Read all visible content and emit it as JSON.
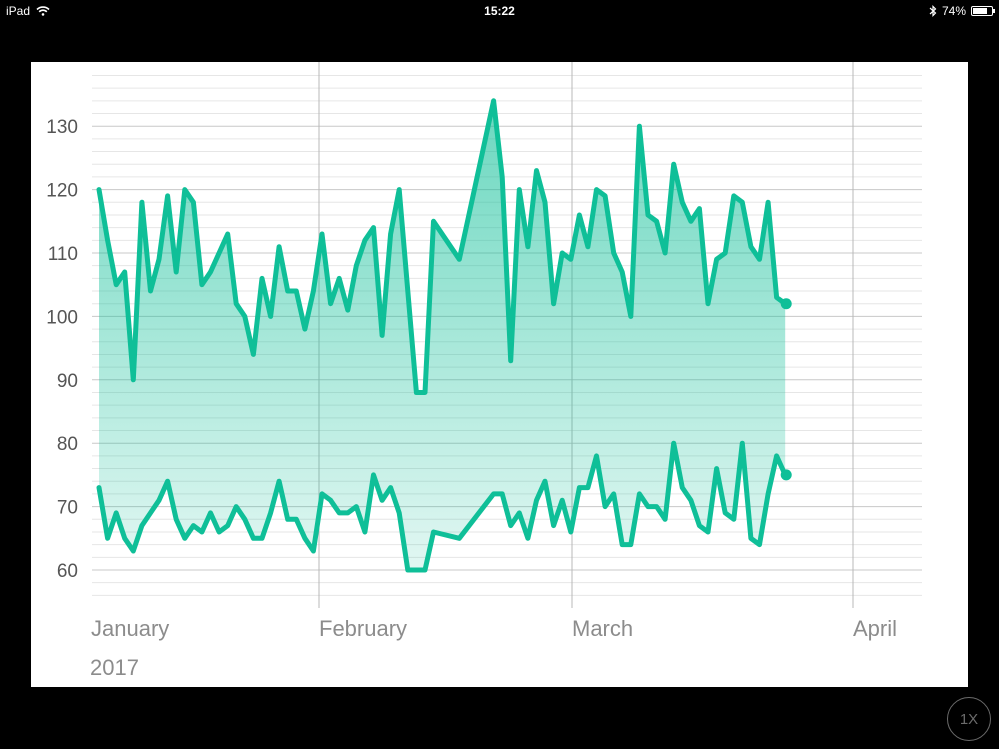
{
  "status_bar": {
    "device": "iPad",
    "time": "15:22",
    "battery": "74%",
    "battery_level": 0.74
  },
  "zoom_button": {
    "label": "1X"
  },
  "chart_data": {
    "type": "area",
    "x_axis": {
      "tick_labels": [
        "January",
        "February",
        "March",
        "April"
      ],
      "year_label": "2017",
      "range": [
        "2017-01-01",
        "2017-04-01"
      ]
    },
    "y_axis": {
      "tick_labels": [
        "60",
        "70",
        "80",
        "90",
        "100",
        "110",
        "120",
        "130"
      ],
      "range": [
        55,
        140
      ]
    },
    "grid": true,
    "series": [
      {
        "role": "high",
        "color": "#0fbf98",
        "points": [
          {
            "x": "2017-01-01",
            "y": 120
          },
          {
            "x": "2017-01-02",
            "y": 112
          },
          {
            "x": "2017-01-03",
            "y": 105
          },
          {
            "x": "2017-01-04",
            "y": 107
          },
          {
            "x": "2017-01-05",
            "y": 90
          },
          {
            "x": "2017-01-06",
            "y": 118
          },
          {
            "x": "2017-01-07",
            "y": 104
          },
          {
            "x": "2017-01-08",
            "y": 109
          },
          {
            "x": "2017-01-09",
            "y": 119
          },
          {
            "x": "2017-01-10",
            "y": 107
          },
          {
            "x": "2017-01-11",
            "y": 120
          },
          {
            "x": "2017-01-12",
            "y": 118
          },
          {
            "x": "2017-01-13",
            "y": 105
          },
          {
            "x": "2017-01-14",
            "y": 107
          },
          {
            "x": "2017-01-15",
            "y": 110
          },
          {
            "x": "2017-01-16",
            "y": 113
          },
          {
            "x": "2017-01-17",
            "y": 102
          },
          {
            "x": "2017-01-18",
            "y": 100
          },
          {
            "x": "2017-01-19",
            "y": 94
          },
          {
            "x": "2017-01-20",
            "y": 106
          },
          {
            "x": "2017-01-21",
            "y": 100
          },
          {
            "x": "2017-01-22",
            "y": 111
          },
          {
            "x": "2017-01-23",
            "y": 104
          },
          {
            "x": "2017-01-24",
            "y": 104
          },
          {
            "x": "2017-01-25",
            "y": 98
          },
          {
            "x": "2017-01-26",
            "y": 104
          },
          {
            "x": "2017-01-27",
            "y": 113
          },
          {
            "x": "2017-01-28",
            "y": 102
          },
          {
            "x": "2017-01-29",
            "y": 106
          },
          {
            "x": "2017-01-30",
            "y": 101
          },
          {
            "x": "2017-01-31",
            "y": 108
          },
          {
            "x": "2017-02-01",
            "y": 112
          },
          {
            "x": "2017-02-02",
            "y": 114
          },
          {
            "x": "2017-02-03",
            "y": 97
          },
          {
            "x": "2017-02-04",
            "y": 113
          },
          {
            "x": "2017-02-05",
            "y": 120
          },
          {
            "x": "2017-02-07",
            "y": 88
          },
          {
            "x": "2017-02-08",
            "y": 88
          },
          {
            "x": "2017-02-09",
            "y": 115
          },
          {
            "x": "2017-02-12",
            "y": 109
          },
          {
            "x": "2017-02-16",
            "y": 134
          },
          {
            "x": "2017-02-17",
            "y": 122
          },
          {
            "x": "2017-02-18",
            "y": 93
          },
          {
            "x": "2017-02-19",
            "y": 120
          },
          {
            "x": "2017-02-20",
            "y": 111
          },
          {
            "x": "2017-02-21",
            "y": 123
          },
          {
            "x": "2017-02-22",
            "y": 118
          },
          {
            "x": "2017-02-23",
            "y": 102
          },
          {
            "x": "2017-02-24",
            "y": 110
          },
          {
            "x": "2017-02-25",
            "y": 109
          },
          {
            "x": "2017-02-26",
            "y": 116
          },
          {
            "x": "2017-02-27",
            "y": 111
          },
          {
            "x": "2017-02-28",
            "y": 120
          },
          {
            "x": "2017-03-01",
            "y": 119
          },
          {
            "x": "2017-03-02",
            "y": 110
          },
          {
            "x": "2017-03-03",
            "y": 107
          },
          {
            "x": "2017-03-04",
            "y": 100
          },
          {
            "x": "2017-03-05",
            "y": 130
          },
          {
            "x": "2017-03-06",
            "y": 116
          },
          {
            "x": "2017-03-07",
            "y": 115
          },
          {
            "x": "2017-03-08",
            "y": 110
          },
          {
            "x": "2017-03-09",
            "y": 124
          },
          {
            "x": "2017-03-10",
            "y": 118
          },
          {
            "x": "2017-03-11",
            "y": 115
          },
          {
            "x": "2017-03-12",
            "y": 117
          },
          {
            "x": "2017-03-13",
            "y": 102
          },
          {
            "x": "2017-03-14",
            "y": 109
          },
          {
            "x": "2017-03-15",
            "y": 110
          },
          {
            "x": "2017-03-16",
            "y": 119
          },
          {
            "x": "2017-03-17",
            "y": 118
          },
          {
            "x": "2017-03-18",
            "y": 111
          },
          {
            "x": "2017-03-19",
            "y": 109
          },
          {
            "x": "2017-03-20",
            "y": 118
          },
          {
            "x": "2017-03-21",
            "y": 103
          },
          {
            "x": "2017-03-22",
            "y": 102
          }
        ]
      },
      {
        "role": "low",
        "color": "#0fbf98",
        "points": [
          {
            "x": "2017-01-01",
            "y": 73
          },
          {
            "x": "2017-01-02",
            "y": 65
          },
          {
            "x": "2017-01-03",
            "y": 69
          },
          {
            "x": "2017-01-04",
            "y": 65
          },
          {
            "x": "2017-01-05",
            "y": 63
          },
          {
            "x": "2017-01-06",
            "y": 67
          },
          {
            "x": "2017-01-07",
            "y": 69
          },
          {
            "x": "2017-01-08",
            "y": 71
          },
          {
            "x": "2017-01-09",
            "y": 74
          },
          {
            "x": "2017-01-10",
            "y": 68
          },
          {
            "x": "2017-01-11",
            "y": 65
          },
          {
            "x": "2017-01-12",
            "y": 67
          },
          {
            "x": "2017-01-13",
            "y": 66
          },
          {
            "x": "2017-01-14",
            "y": 69
          },
          {
            "x": "2017-01-15",
            "y": 66
          },
          {
            "x": "2017-01-16",
            "y": 67
          },
          {
            "x": "2017-01-17",
            "y": 70
          },
          {
            "x": "2017-01-18",
            "y": 68
          },
          {
            "x": "2017-01-19",
            "y": 65
          },
          {
            "x": "2017-01-20",
            "y": 65
          },
          {
            "x": "2017-01-21",
            "y": 69
          },
          {
            "x": "2017-01-22",
            "y": 74
          },
          {
            "x": "2017-01-23",
            "y": 68
          },
          {
            "x": "2017-01-24",
            "y": 68
          },
          {
            "x": "2017-01-25",
            "y": 65
          },
          {
            "x": "2017-01-26",
            "y": 63
          },
          {
            "x": "2017-01-27",
            "y": 72
          },
          {
            "x": "2017-01-28",
            "y": 71
          },
          {
            "x": "2017-01-29",
            "y": 69
          },
          {
            "x": "2017-01-30",
            "y": 69
          },
          {
            "x": "2017-01-31",
            "y": 70
          },
          {
            "x": "2017-02-01",
            "y": 66
          },
          {
            "x": "2017-02-02",
            "y": 75
          },
          {
            "x": "2017-02-03",
            "y": 71
          },
          {
            "x": "2017-02-04",
            "y": 73
          },
          {
            "x": "2017-02-05",
            "y": 69
          },
          {
            "x": "2017-02-06",
            "y": 60
          },
          {
            "x": "2017-02-08",
            "y": 60
          },
          {
            "x": "2017-02-09",
            "y": 66
          },
          {
            "x": "2017-02-12",
            "y": 65
          },
          {
            "x": "2017-02-16",
            "y": 72
          },
          {
            "x": "2017-02-17",
            "y": 72
          },
          {
            "x": "2017-02-18",
            "y": 67
          },
          {
            "x": "2017-02-19",
            "y": 69
          },
          {
            "x": "2017-02-20",
            "y": 65
          },
          {
            "x": "2017-02-21",
            "y": 71
          },
          {
            "x": "2017-02-22",
            "y": 74
          },
          {
            "x": "2017-02-23",
            "y": 67
          },
          {
            "x": "2017-02-24",
            "y": 71
          },
          {
            "x": "2017-02-25",
            "y": 66
          },
          {
            "x": "2017-02-26",
            "y": 73
          },
          {
            "x": "2017-02-27",
            "y": 73
          },
          {
            "x": "2017-02-28",
            "y": 78
          },
          {
            "x": "2017-03-01",
            "y": 70
          },
          {
            "x": "2017-03-02",
            "y": 72
          },
          {
            "x": "2017-03-03",
            "y": 64
          },
          {
            "x": "2017-03-04",
            "y": 64
          },
          {
            "x": "2017-03-05",
            "y": 72
          },
          {
            "x": "2017-03-06",
            "y": 70
          },
          {
            "x": "2017-03-07",
            "y": 70
          },
          {
            "x": "2017-03-08",
            "y": 68
          },
          {
            "x": "2017-03-09",
            "y": 80
          },
          {
            "x": "2017-03-10",
            "y": 73
          },
          {
            "x": "2017-03-11",
            "y": 71
          },
          {
            "x": "2017-03-12",
            "y": 67
          },
          {
            "x": "2017-03-13",
            "y": 66
          },
          {
            "x": "2017-03-14",
            "y": 76
          },
          {
            "x": "2017-03-15",
            "y": 69
          },
          {
            "x": "2017-03-16",
            "y": 68
          },
          {
            "x": "2017-03-17",
            "y": 80
          },
          {
            "x": "2017-03-18",
            "y": 65
          },
          {
            "x": "2017-03-19",
            "y": 64
          },
          {
            "x": "2017-03-20",
            "y": 72
          },
          {
            "x": "2017-03-21",
            "y": 78
          },
          {
            "x": "2017-03-22",
            "y": 75
          }
        ]
      }
    ],
    "fill": {
      "color": "#0fbf98",
      "between_series": true,
      "gradient": true
    }
  }
}
